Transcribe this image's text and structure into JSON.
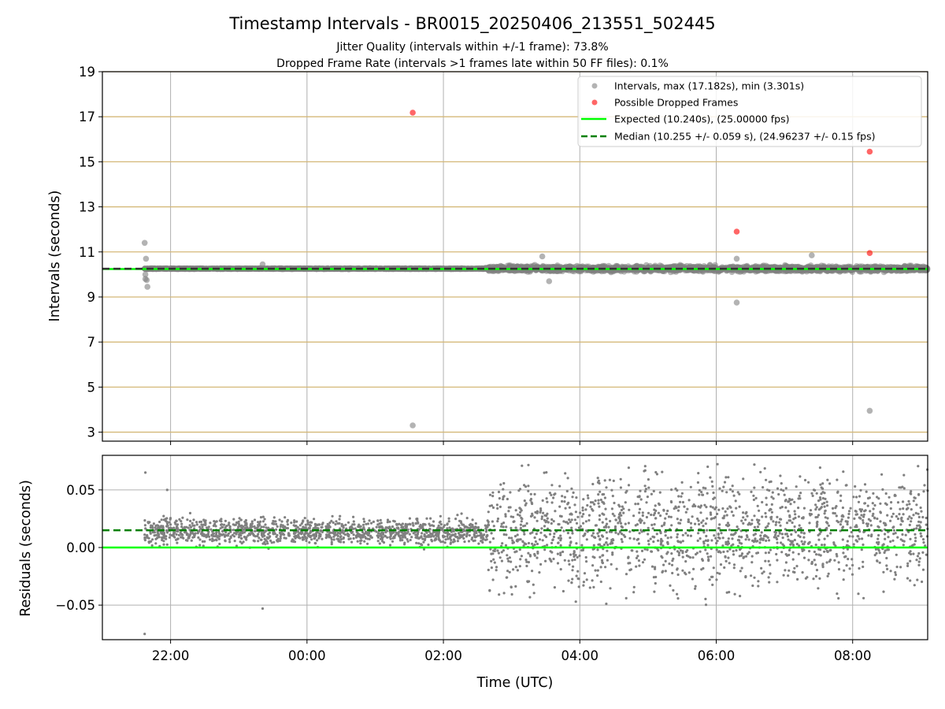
{
  "chart_data": {
    "title": "Timestamp Intervals - BR0015_20250406_213551_502445",
    "subtitle_lines": [
      "Jitter Quality (intervals within +/-1 frame): 73.8%",
      "Dropped Frame Rate (intervals >1 frames late within 50 FF files): 0.1%"
    ],
    "xlabel": "Time (UTC)",
    "x_tick_labels": [
      "22:00",
      "00:00",
      "02:00",
      "04:00",
      "06:00",
      "08:00"
    ],
    "x_tick_hours": [
      22,
      24,
      26,
      28,
      30,
      32
    ],
    "x_range_hours": [
      21.0,
      33.1
    ],
    "colors": {
      "intervals": "#808080",
      "dropped": "#ff0000",
      "expected": "#00ff00",
      "median": "#008000",
      "median_top": "#333333",
      "hgrid_top": "#d4b878",
      "grid": "#b0b0b0"
    },
    "charts": [
      {
        "id": "intervals",
        "type": "scatter",
        "ylabel": "Intervals (seconds)",
        "ylim": [
          2.6,
          19.0
        ],
        "y_ticks": [
          3,
          5,
          7,
          9,
          11,
          13,
          15,
          17,
          19
        ],
        "y_tick_labels": [
          "3",
          "5",
          "7",
          "9",
          "11",
          "13",
          "15",
          "17",
          "19"
        ],
        "legend_position": "top-right",
        "series": [
          {
            "name": "Intervals, max (17.182s), min (3.301s)",
            "kind": "scatter",
            "note_points": "dense band of ~4000 points near 10.24 s; listed are the notable points",
            "x_hours": [
              21.62,
              21.64,
              21.63,
              21.65,
              21.66,
              21.63,
              23.35,
              25.55,
              26.62,
              27.45,
              27.55,
              30.3,
              30.3,
              32.25,
              31.4
            ],
            "y": [
              11.4,
              10.7,
              9.8,
              9.75,
              9.45,
              10.0,
              10.45,
              3.301,
              10.3,
              10.8,
              9.7,
              8.75,
              10.7,
              3.95,
              10.85
            ]
          },
          {
            "name": "Possible Dropped Frames",
            "kind": "scatter",
            "x_hours": [
              25.55,
              30.3,
              32.25,
              32.25
            ],
            "y": [
              17.182,
              11.9,
              15.45,
              10.95
            ]
          },
          {
            "name": "Expected (10.240s), (25.00000 fps)",
            "kind": "hline",
            "y": 10.24
          },
          {
            "name": "Median (10.255 +/- 0.059 s), (24.96237 +/- 0.15 fps)",
            "kind": "hline-dashed",
            "y": 10.255
          }
        ]
      },
      {
        "id": "residuals",
        "type": "scatter",
        "ylabel": "Residuals (seconds)",
        "ylim": [
          -0.08,
          0.08
        ],
        "y_ticks": [
          -0.05,
          0.0,
          0.05
        ],
        "y_tick_labels": [
          "−0.05",
          "0.00",
          "0.05"
        ],
        "series": [
          {
            "kind": "scatter",
            "note_points": "~4000 residual points; tight band 0.00-0.03 until 02:40, wide scatter -0.08 to 0.08 afterwards"
          },
          {
            "kind": "hline",
            "y": 0.0
          },
          {
            "kind": "hline-dashed",
            "y": 0.015
          }
        ]
      }
    ]
  }
}
